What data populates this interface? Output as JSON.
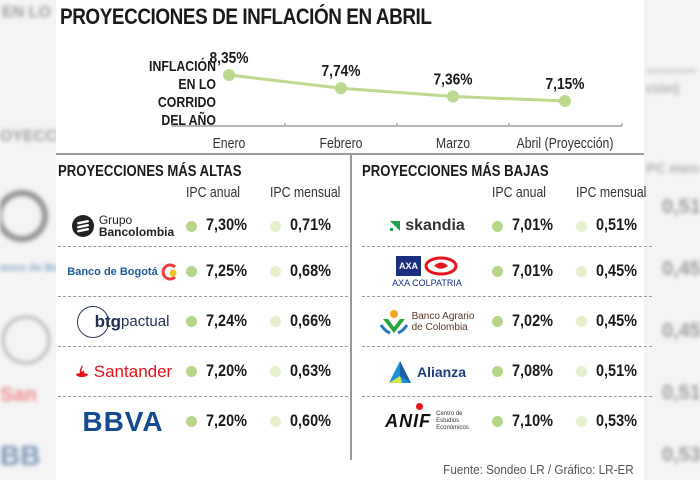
{
  "title": "PROYECCIONES DE INFLACIÓN EN ABRIL",
  "chart_data": {
    "type": "line",
    "title": "PROYECCIONES DE INFLACIÓN EN ABRIL",
    "ylabel": "INFLACIÓN EN LO CORRIDO DEL AÑO",
    "ylabel_lines": [
      "INFLACIÓN",
      "EN LO CORRIDO",
      "DEL AÑO"
    ],
    "xlabel": "",
    "categories": [
      "Enero",
      "Febrero",
      "Marzo",
      "Abril (Proyección)"
    ],
    "values": [
      8.35,
      7.74,
      7.36,
      7.15
    ],
    "data_labels": [
      "8,35%",
      "7,74%",
      "7,36%",
      "7,15%"
    ],
    "unit": "%",
    "grid": false,
    "color": "#bcd98e"
  },
  "sections": {
    "high": {
      "title": "PROYECCIONES MÁS ALTAS",
      "col_annual": "IPC anual",
      "col_monthly": "IPC mensual",
      "rows": [
        {
          "bank": "Grupo Bancolombia",
          "logo_line1": "Grupo",
          "logo_line2": "Bancolombia",
          "annual": "7,30%",
          "monthly": "0,71%"
        },
        {
          "bank": "Banco de Bogotá",
          "logo_text": "Banco de Bogotá",
          "annual": "7,25%",
          "monthly": "0,68%"
        },
        {
          "bank": "BTG Pactual",
          "logo_bold": "btg",
          "logo_light": "pactual",
          "annual": "7,24%",
          "monthly": "0,66%"
        },
        {
          "bank": "Santander",
          "logo_text": "Santander",
          "annual": "7,20%",
          "monthly": "0,63%"
        },
        {
          "bank": "BBVA",
          "logo_text": "BBVA",
          "annual": "7,20%",
          "monthly": "0,60%"
        }
      ]
    },
    "low": {
      "title": "PROYECCIONES MÁS BAJAS",
      "col_annual": "IPC anual",
      "col_monthly": "IPC mensual",
      "rows": [
        {
          "bank": "Skandia",
          "logo_text": "skandia",
          "annual": "7,01%",
          "monthly": "0,51%"
        },
        {
          "bank": "AXA Colpatria",
          "logo_text": "AXA COLPATRIA",
          "logo_mark": "AXA",
          "annual": "7,01%",
          "monthly": "0,45%"
        },
        {
          "bank": "Banco Agrario de Colombia",
          "logo_line1": "Banco Agrario",
          "logo_line2": "de Colombia",
          "annual": "7,02%",
          "monthly": "0,45%"
        },
        {
          "bank": "Alianza",
          "logo_text": "Alianza",
          "annual": "7,08%",
          "monthly": "0,51%"
        },
        {
          "bank": "ANIF Centro de Estudios Económicos",
          "logo_text": "ANIF",
          "logo_line1": "Centro de",
          "logo_line2": "Estudios",
          "logo_line3": "Económicos",
          "annual": "7,10%",
          "monthly": "0,53%"
        }
      ]
    }
  },
  "source": "Fuente: Sondeo LR / Gráfico: LR-ER",
  "colors": {
    "annual_dot": "#b7d68a",
    "monthly_dot": "#e6f0cc",
    "line": "#bcd98e",
    "divider": "#9a9a9a"
  }
}
